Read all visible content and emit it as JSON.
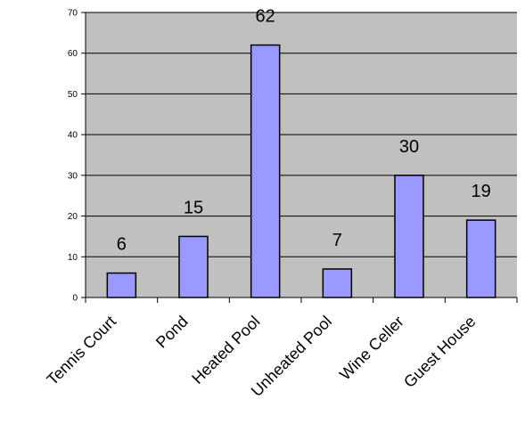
{
  "chart_data": {
    "type": "bar",
    "title": "",
    "xlabel": "",
    "ylabel": "",
    "categories": [
      "Tennis Court",
      "Pond",
      "Heated Pool",
      "Unheated Pool",
      "Wine Celler",
      "Guest House"
    ],
    "values": [
      6,
      15,
      62,
      7,
      30,
      19
    ],
    "data_labels": [
      "6",
      "15",
      "62",
      "7",
      "30",
      "19"
    ],
    "ylim": [
      0,
      70
    ],
    "yticks": [
      0,
      10,
      20,
      30,
      40,
      50,
      60,
      70
    ],
    "ytick_labels": [
      "0",
      "10",
      "20",
      "30",
      "40",
      "50",
      "60",
      "70"
    ],
    "grid": true,
    "legend": "none",
    "colors": {
      "plot_background": "#c0c0c0",
      "bar_fill": "#9999ff",
      "bar_stroke": "#000000",
      "gridline": "#000000"
    }
  }
}
